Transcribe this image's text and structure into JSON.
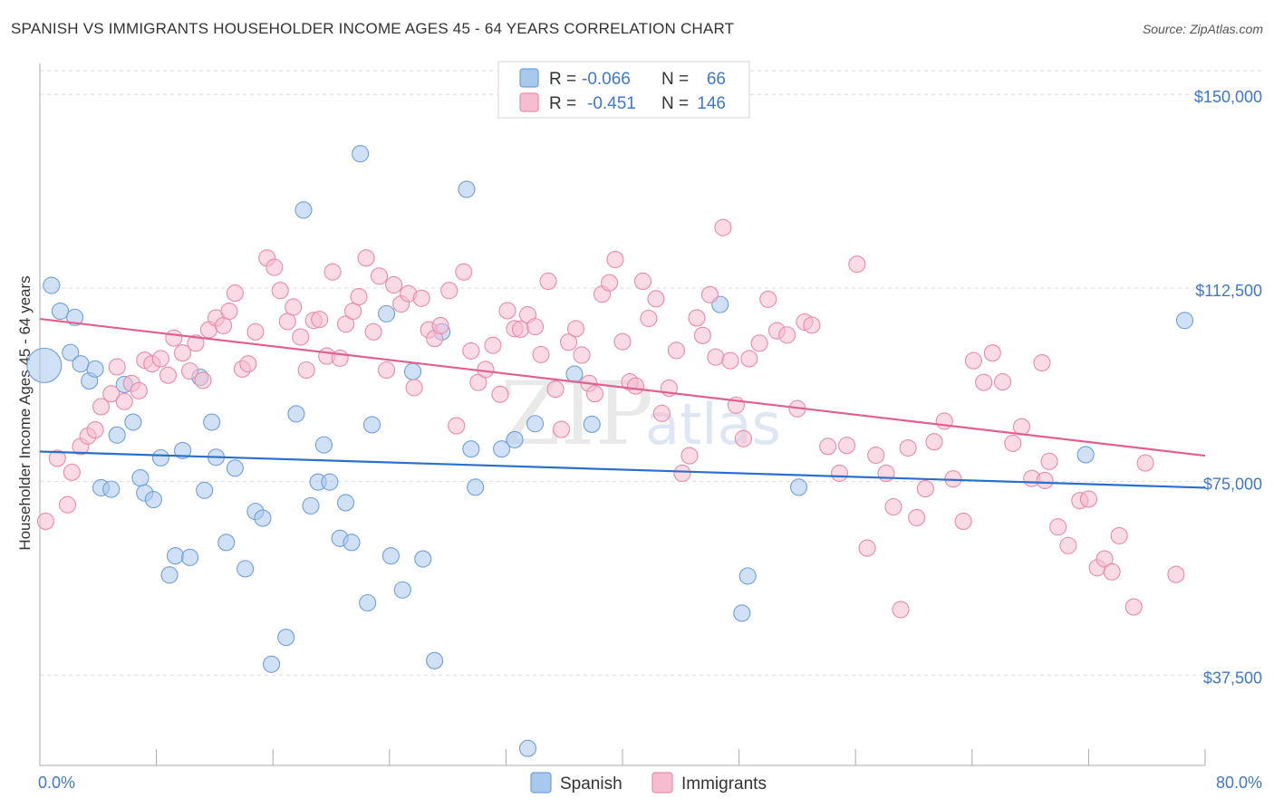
{
  "header": {
    "title": "SPANISH VS IMMIGRANTS HOUSEHOLDER INCOME AGES 45 - 64 YEARS CORRELATION CHART",
    "source": "Source: ZipAtlas.com"
  },
  "watermark": {
    "zip": "ZIP",
    "atlas": "atlas"
  },
  "colors": {
    "spanish_fill": "#a9c8ee",
    "spanish_stroke": "#6e9fd9",
    "spanish_line": "#2a6fcb",
    "immigrants_fill": "#f6bcd0",
    "immigrants_stroke": "#e98aab",
    "immigrants_line": "#e0608f",
    "grid": "#dcdcdc",
    "label": "#3f78c9"
  },
  "legend_top": {
    "rows": [
      {
        "r_label": "R =",
        "r_value": "-0.066",
        "n_label": "N =",
        "n_value": "66"
      },
      {
        "r_label": "R =",
        "r_value": "-0.451",
        "n_label": "N =",
        "n_value": "146"
      }
    ]
  },
  "legend_bottom": {
    "items": [
      "Spanish",
      "Immigrants"
    ]
  },
  "chart_data": {
    "type": "scatter",
    "title": "SPANISH VS IMMIGRANTS HOUSEHOLDER INCOME AGES 45 - 64 YEARS CORRELATION CHART",
    "xlabel": "",
    "ylabel": "Householder Income Ages 45 - 64 years",
    "xlim": [
      0,
      80
    ],
    "ylim": [
      20000,
      156000
    ],
    "x_tick_labels": [
      "0.0%",
      "80.0%"
    ],
    "y_ticks": [
      37500,
      75000,
      112500,
      150000
    ],
    "y_tick_labels": [
      "$37,500",
      "$75,000",
      "$112,500",
      "$150,000"
    ],
    "legend_position": "top-center",
    "series": [
      {
        "name": "Spanish",
        "r": -0.066,
        "n": 66,
        "trend": {
          "x": [
            0,
            80
          ],
          "y": [
            80800,
            73800
          ]
        },
        "points": [
          [
            0.3,
            97500,
            "large"
          ],
          [
            0.8,
            113000
          ],
          [
            1.4,
            108000
          ],
          [
            2.1,
            100000
          ],
          [
            2.4,
            106800
          ],
          [
            2.8,
            97800
          ],
          [
            3.4,
            94500
          ],
          [
            3.8,
            96800
          ],
          [
            4.2,
            73800
          ],
          [
            4.9,
            73500
          ],
          [
            5.3,
            84000
          ],
          [
            5.8,
            93800
          ],
          [
            6.4,
            86500
          ],
          [
            6.9,
            75700
          ],
          [
            7.2,
            72800
          ],
          [
            7.8,
            71500
          ],
          [
            8.3,
            79600
          ],
          [
            8.9,
            56900
          ],
          [
            9.3,
            60600
          ],
          [
            9.8,
            81000
          ],
          [
            10.3,
            60300
          ],
          [
            11.0,
            95200
          ],
          [
            11.3,
            73300
          ],
          [
            11.8,
            86500
          ],
          [
            12.1,
            79700
          ],
          [
            12.8,
            63200
          ],
          [
            13.4,
            77600
          ],
          [
            14.1,
            58100
          ],
          [
            14.8,
            69200
          ],
          [
            15.3,
            67900
          ],
          [
            15.9,
            39600
          ],
          [
            16.9,
            44800
          ],
          [
            17.6,
            88100
          ],
          [
            18.1,
            127600
          ],
          [
            18.6,
            70300
          ],
          [
            19.1,
            74900
          ],
          [
            19.5,
            82100
          ],
          [
            19.9,
            74900
          ],
          [
            20.6,
            64000
          ],
          [
            21.0,
            70900
          ],
          [
            21.4,
            63200
          ],
          [
            22.0,
            138500
          ],
          [
            22.5,
            51500
          ],
          [
            22.8,
            86000
          ],
          [
            23.8,
            107500
          ],
          [
            24.1,
            60600
          ],
          [
            24.9,
            54000
          ],
          [
            25.6,
            96300
          ],
          [
            26.3,
            60000
          ],
          [
            27.1,
            40300
          ],
          [
            27.6,
            104000
          ],
          [
            29.3,
            131600
          ],
          [
            29.6,
            81300
          ],
          [
            29.9,
            73900
          ],
          [
            31.7,
            81300
          ],
          [
            32.6,
            83100
          ],
          [
            33.5,
            23300
          ],
          [
            34.0,
            86200
          ],
          [
            36.7,
            95800
          ],
          [
            37.9,
            86100
          ],
          [
            46.7,
            109300
          ],
          [
            48.2,
            49500
          ],
          [
            48.6,
            56700
          ],
          [
            52.1,
            73900
          ],
          [
            71.8,
            80200
          ],
          [
            78.6,
            106200
          ]
        ]
      },
      {
        "name": "Immigrants",
        "r": -0.451,
        "n": 146,
        "trend": {
          "x": [
            0,
            80
          ],
          "y": [
            106500,
            80000
          ]
        },
        "points": [
          [
            0.4,
            67300
          ],
          [
            1.2,
            79500
          ],
          [
            1.9,
            70500
          ],
          [
            2.2,
            76800
          ],
          [
            2.8,
            81800
          ],
          [
            3.3,
            83800
          ],
          [
            3.8,
            85000
          ],
          [
            4.2,
            89500
          ],
          [
            4.9,
            92000
          ],
          [
            5.3,
            97200
          ],
          [
            5.8,
            90500
          ],
          [
            6.3,
            94000
          ],
          [
            6.8,
            92600
          ],
          [
            7.2,
            98500
          ],
          [
            7.7,
            97800
          ],
          [
            8.3,
            98800
          ],
          [
            8.8,
            95600
          ],
          [
            9.2,
            102800
          ],
          [
            9.8,
            99900
          ],
          [
            10.3,
            96400
          ],
          [
            10.7,
            101800
          ],
          [
            11.2,
            94600
          ],
          [
            11.6,
            104400
          ],
          [
            12.1,
            106700
          ],
          [
            12.6,
            105200
          ],
          [
            13.0,
            108000
          ],
          [
            13.4,
            111500
          ],
          [
            13.9,
            96800
          ],
          [
            14.3,
            97800
          ],
          [
            14.8,
            104000
          ],
          [
            15.6,
            118300
          ],
          [
            16.1,
            116500
          ],
          [
            16.5,
            112000
          ],
          [
            17.0,
            106000
          ],
          [
            17.4,
            108800
          ],
          [
            17.9,
            103000
          ],
          [
            18.3,
            96600
          ],
          [
            18.8,
            106200
          ],
          [
            19.2,
            106400
          ],
          [
            19.7,
            99300
          ],
          [
            20.1,
            115600
          ],
          [
            20.6,
            98900
          ],
          [
            21.0,
            105500
          ],
          [
            21.5,
            108000
          ],
          [
            21.9,
            110800
          ],
          [
            22.4,
            118300
          ],
          [
            22.9,
            104000
          ],
          [
            23.3,
            114800
          ],
          [
            23.8,
            96600
          ],
          [
            24.3,
            113100
          ],
          [
            24.8,
            109400
          ],
          [
            25.3,
            111400
          ],
          [
            25.7,
            93200
          ],
          [
            26.2,
            110500
          ],
          [
            26.7,
            104400
          ],
          [
            27.1,
            102700
          ],
          [
            27.5,
            105200
          ],
          [
            28.1,
            112000
          ],
          [
            28.6,
            85800
          ],
          [
            29.1,
            115600
          ],
          [
            29.6,
            100300
          ],
          [
            30.1,
            94200
          ],
          [
            30.6,
            96700
          ],
          [
            31.1,
            101400
          ],
          [
            31.6,
            91900
          ],
          [
            32.1,
            108100
          ],
          [
            32.6,
            104600
          ],
          [
            33.0,
            104500
          ],
          [
            33.5,
            107300
          ],
          [
            34.0,
            105000
          ],
          [
            34.4,
            99600
          ],
          [
            34.9,
            113800
          ],
          [
            35.4,
            92900
          ],
          [
            35.8,
            85100
          ],
          [
            36.3,
            102000
          ],
          [
            36.8,
            104600
          ],
          [
            37.2,
            99500
          ],
          [
            37.7,
            94000
          ],
          [
            38.1,
            92000
          ],
          [
            38.6,
            111300
          ],
          [
            39.1,
            113500
          ],
          [
            39.5,
            118000
          ],
          [
            40.0,
            102100
          ],
          [
            40.5,
            94300
          ],
          [
            40.9,
            93500
          ],
          [
            41.4,
            113800
          ],
          [
            41.8,
            106600
          ],
          [
            42.3,
            110400
          ],
          [
            42.7,
            88200
          ],
          [
            43.2,
            93100
          ],
          [
            43.7,
            100400
          ],
          [
            44.1,
            76600
          ],
          [
            44.6,
            80000
          ],
          [
            45.1,
            106700
          ],
          [
            45.5,
            103300
          ],
          [
            46.0,
            111200
          ],
          [
            46.4,
            99100
          ],
          [
            46.9,
            124200
          ],
          [
            47.4,
            98400
          ],
          [
            47.8,
            89800
          ],
          [
            48.3,
            83300
          ],
          [
            48.7,
            98800
          ],
          [
            49.4,
            101800
          ],
          [
            50.0,
            110300
          ],
          [
            50.6,
            104200
          ],
          [
            51.3,
            103400
          ],
          [
            52.0,
            89100
          ],
          [
            52.5,
            105900
          ],
          [
            53.0,
            105300
          ],
          [
            54.1,
            81800
          ],
          [
            54.9,
            76600
          ],
          [
            55.4,
            82000
          ],
          [
            56.1,
            117100
          ],
          [
            56.8,
            62100
          ],
          [
            57.4,
            80100
          ],
          [
            58.1,
            76600
          ],
          [
            58.6,
            70100
          ],
          [
            59.1,
            50200
          ],
          [
            59.6,
            81500
          ],
          [
            60.2,
            68000
          ],
          [
            60.8,
            73600
          ],
          [
            61.4,
            82700
          ],
          [
            62.1,
            86700
          ],
          [
            62.7,
            75500
          ],
          [
            63.4,
            67300
          ],
          [
            64.1,
            98400
          ],
          [
            64.8,
            94200
          ],
          [
            65.4,
            99900
          ],
          [
            66.1,
            94300
          ],
          [
            66.8,
            82400
          ],
          [
            67.4,
            85600
          ],
          [
            68.1,
            75600
          ],
          [
            68.8,
            98000
          ],
          [
            69.3,
            78900
          ],
          [
            69.9,
            66200
          ],
          [
            70.6,
            62600
          ],
          [
            71.4,
            71300
          ],
          [
            72.0,
            71600
          ],
          [
            72.6,
            58300
          ],
          [
            73.1,
            60000
          ],
          [
            73.6,
            57500
          ],
          [
            74.1,
            64500
          ],
          [
            75.1,
            50700
          ],
          [
            75.9,
            78600
          ],
          [
            78.0,
            57000
          ],
          [
            69.0,
            75200
          ]
        ]
      }
    ]
  }
}
